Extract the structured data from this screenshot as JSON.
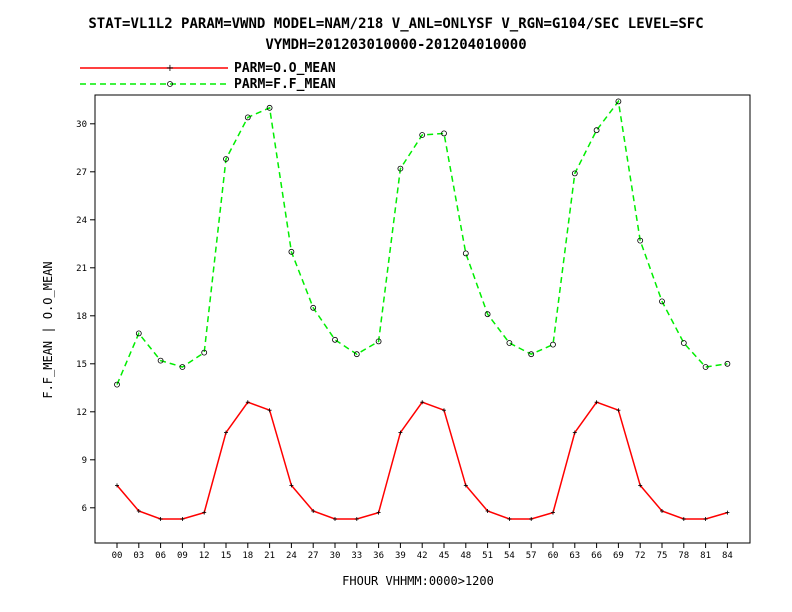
{
  "chart_data": {
    "type": "line",
    "title": "STAT=VL1L2 PARAM=VWND MODEL=NAM/218 V_ANL=ONLYSF V_RGN=G104/SEC LEVEL=SFC",
    "subtitle": "VYMDH=201203010000-201204010000",
    "xlabel": "FHOUR VHHMM:0000>1200",
    "ylabel": "F.F_MEAN | O.O_MEAN",
    "categories": [
      "00",
      "03",
      "06",
      "09",
      "12",
      "15",
      "18",
      "21",
      "24",
      "27",
      "30",
      "33",
      "36",
      "39",
      "42",
      "45",
      "48",
      "51",
      "54",
      "57",
      "60",
      "63",
      "66",
      "69",
      "72",
      "75",
      "78",
      "81",
      "84"
    ],
    "ylim": [
      3.8,
      31.8
    ],
    "yticks": [
      "6",
      "9",
      "12",
      "15",
      "18",
      "21",
      "24",
      "27",
      "30"
    ],
    "legend_position": "top-left",
    "series": [
      {
        "name": "PARM=O.O_MEAN",
        "color": "#ff0000",
        "line_style": "solid",
        "marker": "plus",
        "values": [
          7.4,
          5.8,
          5.3,
          5.3,
          5.7,
          10.7,
          12.6,
          12.1,
          7.4,
          5.8,
          5.3,
          5.3,
          5.7,
          10.7,
          12.6,
          12.1,
          7.4,
          5.8,
          5.3,
          5.3,
          5.7,
          10.7,
          12.6,
          12.1,
          7.4,
          5.8,
          5.3,
          5.3,
          5.7
        ]
      },
      {
        "name": "PARM=F.F_MEAN",
        "color": "#00ee00",
        "line_style": "dashed",
        "marker": "circle",
        "values": [
          13.7,
          16.9,
          15.2,
          14.8,
          15.7,
          27.8,
          30.4,
          31.0,
          22.0,
          18.5,
          16.5,
          15.6,
          16.4,
          27.2,
          29.3,
          29.4,
          21.9,
          18.1,
          16.3,
          15.6,
          16.2,
          26.9,
          29.6,
          31.4,
          22.7,
          18.9,
          16.3,
          14.8,
          15.0
        ]
      }
    ]
  }
}
